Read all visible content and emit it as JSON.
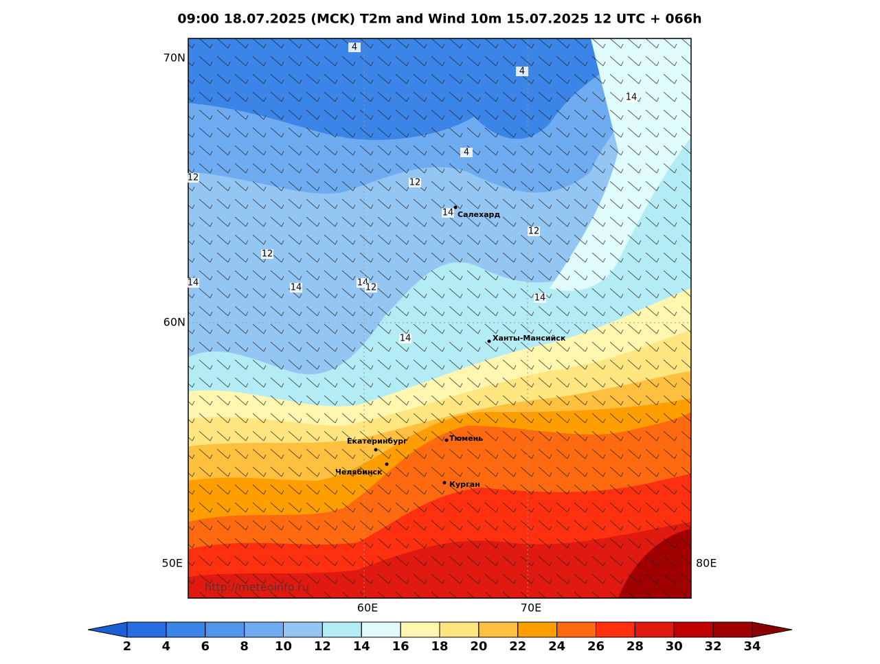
{
  "header": {
    "title": "09:00 18.07.2025 (MCK) T2m and Wind 10m 15.07.2025 12 UTC + 066h"
  },
  "map": {
    "lat_labels": [
      "70N",
      "60N"
    ],
    "lon_labels": [
      "50E",
      "80E",
      "60E",
      "70E"
    ],
    "cities": [
      "Салехард",
      "Ханты-Мансийск",
      "Екатеринбург",
      "Тюмень",
      "Челябинск",
      "Курган"
    ],
    "contour_labels": [
      4,
      4,
      4,
      14,
      12,
      12,
      14,
      12,
      12,
      14,
      14,
      14,
      12,
      14,
      14
    ],
    "watermark": "http://meteoinfo.ru"
  },
  "colorbar": {
    "ticks": [
      2,
      4,
      6,
      8,
      10,
      12,
      14,
      16,
      18,
      20,
      22,
      24,
      26,
      28,
      30,
      32,
      34
    ],
    "colors": [
      "#1b5ed6",
      "#2a6de3",
      "#3b84e8",
      "#5296ec",
      "#6fabf0",
      "#93c6f2",
      "#b4ecf6",
      "#e0fcfc",
      "#fff7b0",
      "#ffe680",
      "#ffc040",
      "#ff9e00",
      "#ff6a10",
      "#ff3010",
      "#e01a10",
      "#c00000",
      "#a00000",
      "#8a0000"
    ]
  }
}
